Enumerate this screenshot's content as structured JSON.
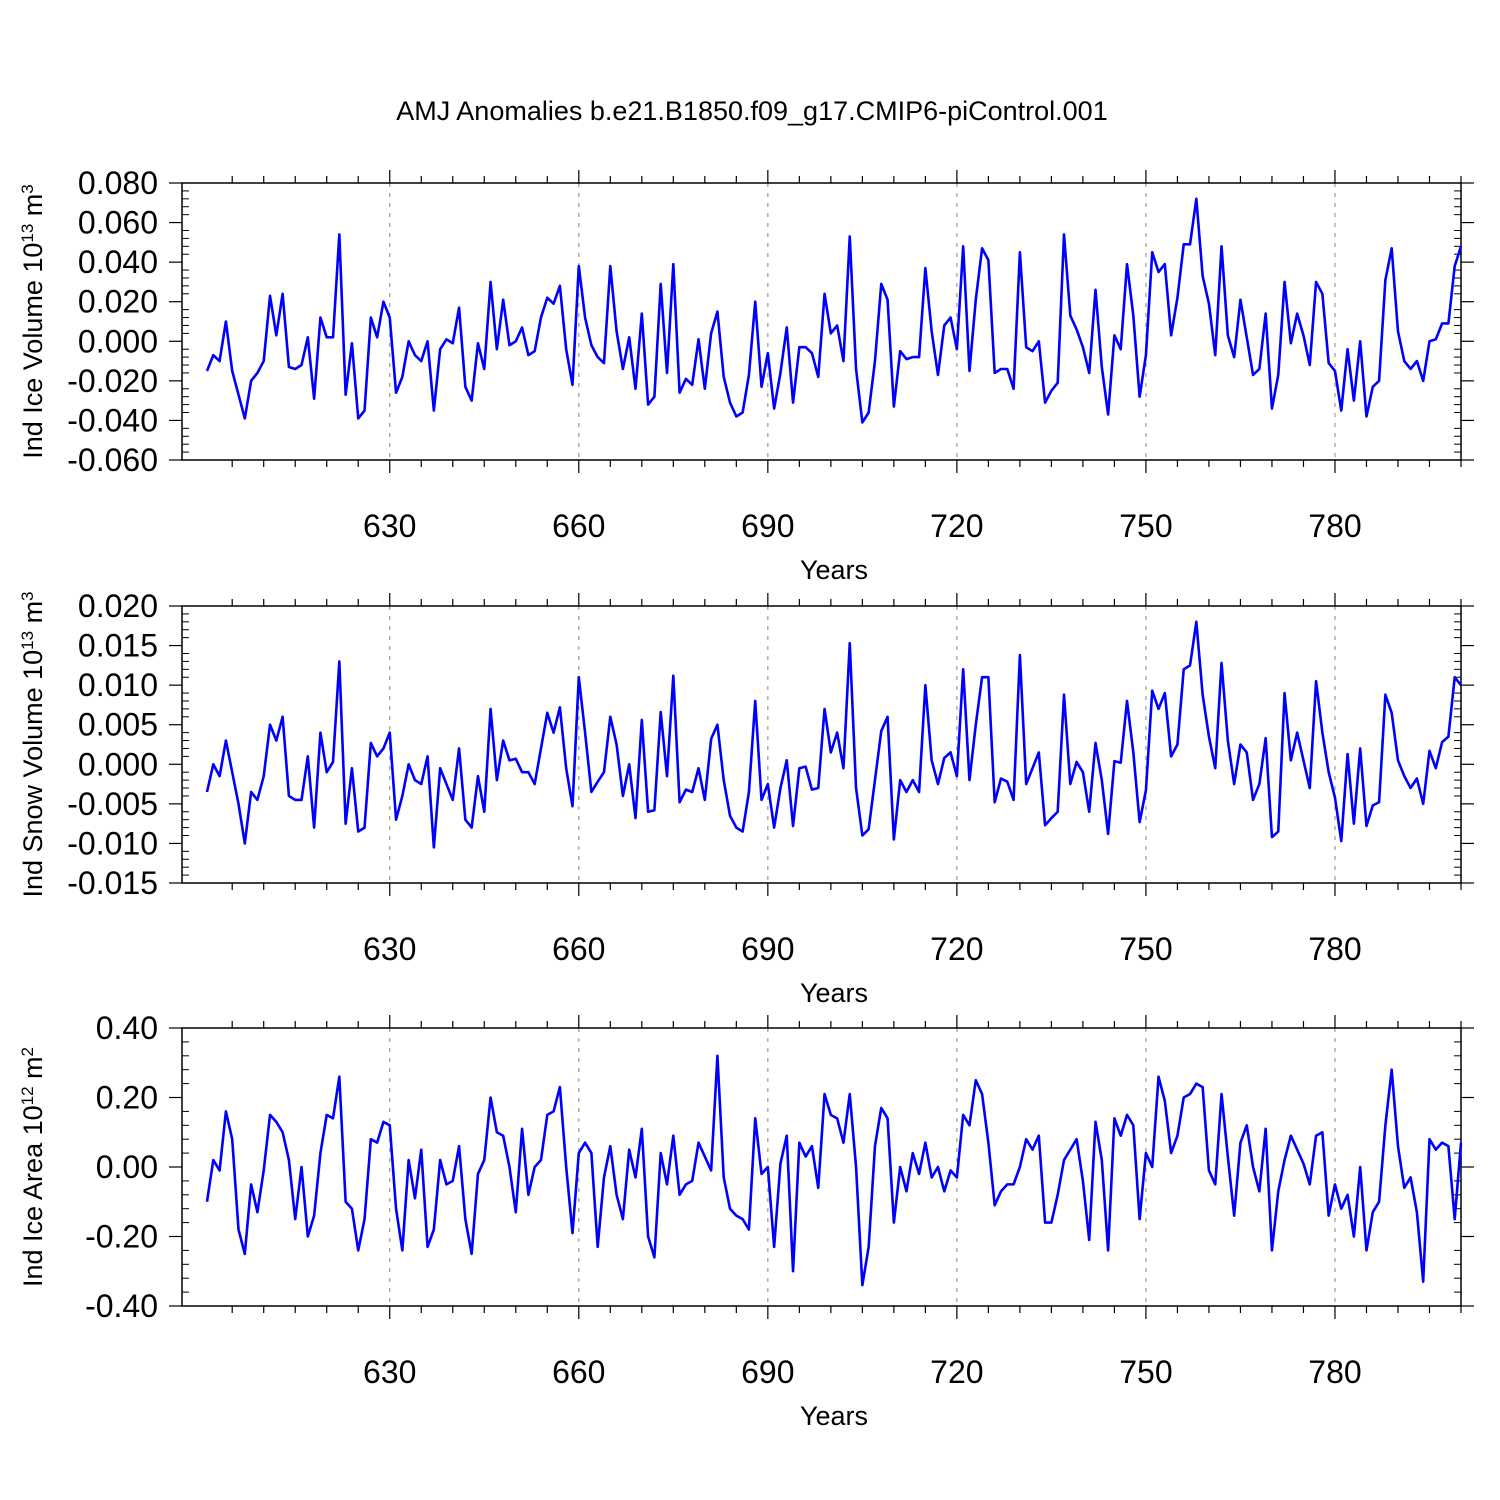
{
  "figure_title": "AMJ Anomalies b.e21.B1850.f09_g17.CMIP6-piControl.001",
  "colors": {
    "series": "#0000ff",
    "grid": "#999999",
    "axis": "#000000"
  },
  "chart_data": [
    {
      "type": "line",
      "ylabel_main": "Ind Ice Volume 10",
      "ylabel_exp": "13",
      "ylabel_unit": " m",
      "ylabel_unit_exp": "3",
      "xlabel": "Years",
      "xlim": [
        601,
        800
      ],
      "ylim": [
        -0.06,
        0.08
      ],
      "xticks": [
        630,
        660,
        690,
        720,
        750,
        780
      ],
      "xtick_labels": [
        "630",
        "660",
        "690",
        "720",
        "750",
        "780"
      ],
      "yticks": [
        -0.06,
        -0.04,
        -0.02,
        0.0,
        0.02,
        0.04,
        0.06,
        0.08
      ],
      "ytick_labels": [
        "-0.060",
        "-0.040",
        "-0.020",
        "0.000",
        "0.020",
        "0.040",
        "0.060",
        "0.080"
      ],
      "x_start": 601,
      "values": [
        -0.015,
        -0.007,
        -0.01,
        0.01,
        -0.015,
        -0.027,
        -0.039,
        -0.02,
        -0.016,
        -0.01,
        0.023,
        0.003,
        0.024,
        -0.013,
        -0.014,
        -0.012,
        0.002,
        -0.029,
        0.012,
        0.002,
        0.002,
        0.054,
        -0.027,
        -0.001,
        -0.039,
        -0.035,
        0.012,
        0.002,
        0.02,
        0.012,
        -0.026,
        -0.018,
        0.0,
        -0.007,
        -0.01,
        0.0,
        -0.035,
        -0.004,
        0.001,
        -0.001,
        0.017,
        -0.023,
        -0.03,
        -0.001,
        -0.014,
        0.03,
        -0.004,
        0.021,
        -0.002,
        0.0,
        0.007,
        -0.007,
        -0.005,
        0.012,
        0.022,
        0.019,
        0.028,
        -0.004,
        -0.022,
        0.038,
        0.012,
        -0.002,
        -0.008,
        -0.011,
        0.038,
        0.005,
        -0.014,
        0.002,
        -0.024,
        0.014,
        -0.032,
        -0.028,
        0.029,
        -0.016,
        0.039,
        -0.026,
        -0.019,
        -0.022,
        0.001,
        -0.024,
        0.004,
        0.015,
        -0.018,
        -0.031,
        -0.038,
        -0.036,
        -0.017,
        0.02,
        -0.023,
        -0.006,
        -0.034,
        -0.016,
        0.007,
        -0.031,
        -0.003,
        -0.003,
        -0.006,
        -0.018,
        0.024,
        0.004,
        0.008,
        -0.01,
        0.053,
        -0.014,
        -0.041,
        -0.036,
        -0.01,
        0.029,
        0.021,
        -0.033,
        -0.005,
        -0.009,
        -0.008,
        -0.008,
        0.037,
        0.005,
        -0.017,
        0.008,
        0.012,
        -0.004,
        0.048,
        -0.015,
        0.021,
        0.047,
        0.041,
        -0.016,
        -0.014,
        -0.014,
        -0.024,
        0.045,
        -0.003,
        -0.005,
        0.0,
        -0.031,
        -0.025,
        -0.021,
        0.054,
        0.013,
        0.006,
        -0.003,
        -0.016,
        0.026,
        -0.013,
        -0.037,
        0.003,
        -0.004,
        0.039,
        0.013,
        -0.028,
        -0.007,
        0.045,
        0.035,
        0.039,
        0.003,
        0.022,
        0.049,
        0.049,
        0.072,
        0.033,
        0.019,
        -0.007,
        0.048,
        0.003,
        -0.008,
        0.021,
        0.002,
        -0.017,
        -0.014,
        0.014,
        -0.034,
        -0.017,
        0.03,
        -0.001,
        0.014,
        0.003,
        -0.012,
        0.03,
        0.024,
        -0.011,
        -0.015,
        -0.035,
        -0.004,
        -0.03,
        0.0,
        -0.038,
        -0.023,
        -0.02,
        0.031,
        0.047,
        0.005,
        -0.01,
        -0.014,
        -0.01,
        -0.02,
        0.0,
        0.001,
        0.009,
        0.009,
        0.038,
        0.048
      ]
    },
    {
      "type": "line",
      "ylabel_main": "Ind Snow Volume 10",
      "ylabel_exp": "13",
      "ylabel_unit": " m",
      "ylabel_unit_exp": "3",
      "xlabel": "Years",
      "xlim": [
        601,
        800
      ],
      "ylim": [
        -0.015,
        0.02
      ],
      "xticks": [
        630,
        660,
        690,
        720,
        750,
        780
      ],
      "xtick_labels": [
        "630",
        "660",
        "690",
        "720",
        "750",
        "780"
      ],
      "yticks": [
        -0.015,
        -0.01,
        -0.005,
        0.0,
        0.005,
        0.01,
        0.015,
        0.02
      ],
      "ytick_labels": [
        "-0.015",
        "-0.010",
        "-0.005",
        "0.000",
        "0.005",
        "0.010",
        "0.015",
        "0.020"
      ],
      "x_start": 601,
      "values": [
        -0.0035,
        0.0,
        -0.0015,
        0.003,
        -0.001,
        -0.005,
        -0.01,
        -0.0035,
        -0.0045,
        -0.0015,
        0.005,
        0.003,
        0.006,
        -0.004,
        -0.0045,
        -0.0045,
        0.001,
        -0.008,
        0.004,
        -0.001,
        0.0003,
        0.013,
        -0.0075,
        -0.0005,
        -0.0085,
        -0.008,
        0.0027,
        0.001,
        0.002,
        0.004,
        -0.007,
        -0.004,
        0.0,
        -0.002,
        -0.0025,
        0.001,
        -0.0105,
        -0.0005,
        -0.0025,
        -0.0045,
        0.002,
        -0.007,
        -0.008,
        -0.0015,
        -0.006,
        0.007,
        -0.002,
        0.003,
        0.0005,
        0.0007,
        -0.001,
        -0.001,
        -0.0025,
        0.002,
        0.0065,
        0.004,
        0.0072,
        -0.0005,
        -0.0053,
        0.011,
        0.004,
        -0.0035,
        -0.0022,
        -0.001,
        0.006,
        0.0025,
        -0.004,
        0.0,
        -0.0068,
        0.0056,
        -0.006,
        -0.0058,
        0.0066,
        -0.0015,
        0.0112,
        -0.0048,
        -0.0032,
        -0.0035,
        -0.0005,
        -0.0045,
        0.0032,
        0.005,
        -0.002,
        -0.0065,
        -0.008,
        -0.0085,
        -0.0035,
        0.008,
        -0.0045,
        -0.0025,
        -0.008,
        -0.003,
        0.0005,
        -0.0078,
        -0.0005,
        -0.0003,
        -0.0032,
        -0.003,
        0.007,
        0.0015,
        0.004,
        -0.0005,
        0.0153,
        -0.003,
        -0.009,
        -0.0082,
        -0.002,
        0.0042,
        0.006,
        -0.0095,
        -0.002,
        -0.0035,
        -0.002,
        -0.0035,
        0.01,
        0.0005,
        -0.0025,
        0.0008,
        0.0015,
        -0.0015,
        0.012,
        -0.002,
        0.005,
        0.011,
        0.011,
        -0.0048,
        -0.0018,
        -0.0022,
        -0.0045,
        0.0138,
        -0.0025,
        -0.0005,
        0.0015,
        -0.0077,
        -0.0068,
        -0.006,
        0.0088,
        -0.0025,
        0.0003,
        -0.001,
        -0.006,
        0.0027,
        -0.002,
        -0.0088,
        0.0004,
        0.0002,
        0.008,
        0.0015,
        -0.0073,
        -0.0033,
        0.0093,
        0.007,
        0.009,
        0.001,
        0.0025,
        0.012,
        0.0125,
        0.018,
        0.0088,
        0.0035,
        -0.0005,
        0.0128,
        0.003,
        -0.0025,
        0.0025,
        0.0015,
        -0.0045,
        -0.0025,
        0.0033,
        -0.0092,
        -0.0085,
        0.009,
        0.0005,
        0.004,
        0.0005,
        -0.003,
        0.0105,
        0.004,
        -0.001,
        -0.0042,
        -0.0097,
        0.0013,
        -0.0075,
        0.002,
        -0.0078,
        -0.0052,
        -0.0048,
        0.0088,
        0.0065,
        0.0005,
        -0.0015,
        -0.003,
        -0.0018,
        -0.005,
        0.0017,
        -0.0005,
        0.0028,
        0.0035,
        0.011,
        0.01
      ]
    },
    {
      "type": "line",
      "ylabel_main": "Ind Ice Area 10",
      "ylabel_exp": "12",
      "ylabel_unit": " m",
      "ylabel_unit_exp": "2",
      "xlabel": "Years",
      "xlim": [
        601,
        800
      ],
      "ylim": [
        -0.4,
        0.4
      ],
      "xticks": [
        630,
        660,
        690,
        720,
        750,
        780
      ],
      "xtick_labels": [
        "630",
        "660",
        "690",
        "720",
        "750",
        "780"
      ],
      "yticks": [
        -0.4,
        -0.2,
        0.0,
        0.2,
        0.4
      ],
      "ytick_labels": [
        "-0.40",
        "-0.20",
        "0.00",
        "0.20",
        "0.40"
      ],
      "x_start": 601,
      "values": [
        -0.1,
        0.02,
        -0.01,
        0.16,
        0.08,
        -0.18,
        -0.25,
        -0.05,
        -0.13,
        -0.01,
        0.15,
        0.13,
        0.1,
        0.02,
        -0.15,
        0.0,
        -0.2,
        -0.14,
        0.04,
        0.15,
        0.14,
        0.26,
        -0.1,
        -0.12,
        -0.24,
        -0.15,
        0.08,
        0.07,
        0.13,
        0.12,
        -0.12,
        -0.24,
        0.02,
        -0.09,
        0.05,
        -0.23,
        -0.18,
        0.02,
        -0.05,
        -0.04,
        0.06,
        -0.15,
        -0.25,
        -0.02,
        0.02,
        0.2,
        0.1,
        0.09,
        0.0,
        -0.13,
        0.11,
        -0.08,
        0.0,
        0.02,
        0.15,
        0.16,
        0.23,
        0.0,
        -0.19,
        0.04,
        0.07,
        0.04,
        -0.23,
        -0.03,
        0.06,
        -0.08,
        -0.15,
        0.05,
        -0.03,
        0.11,
        -0.2,
        -0.26,
        0.04,
        -0.05,
        0.09,
        -0.08,
        -0.05,
        -0.04,
        0.07,
        0.03,
        -0.01,
        0.32,
        -0.03,
        -0.12,
        -0.14,
        -0.15,
        -0.18,
        0.14,
        -0.02,
        0.0,
        -0.23,
        0.01,
        0.09,
        -0.3,
        0.07,
        0.03,
        0.06,
        -0.06,
        0.21,
        0.15,
        0.14,
        0.07,
        0.21,
        0.0,
        -0.34,
        -0.23,
        0.06,
        0.17,
        0.14,
        -0.16,
        0.0,
        -0.07,
        0.04,
        -0.02,
        0.07,
        -0.03,
        0.0,
        -0.07,
        -0.01,
        -0.03,
        0.15,
        0.12,
        0.25,
        0.21,
        0.07,
        -0.11,
        -0.07,
        -0.05,
        -0.05,
        0.0,
        0.08,
        0.05,
        0.09,
        -0.16,
        -0.16,
        -0.08,
        0.02,
        0.05,
        0.08,
        -0.04,
        -0.21,
        0.13,
        0.02,
        -0.24,
        0.14,
        0.09,
        0.15,
        0.12,
        -0.15,
        0.04,
        0.0,
        0.26,
        0.19,
        0.04,
        0.09,
        0.2,
        0.21,
        0.24,
        0.23,
        -0.01,
        -0.05,
        0.21,
        0.03,
        -0.14,
        0.07,
        0.12,
        0.0,
        -0.07,
        0.11,
        -0.24,
        -0.07,
        0.02,
        0.09,
        0.05,
        0.01,
        -0.05,
        0.09,
        0.1,
        -0.14,
        -0.05,
        -0.12,
        -0.08,
        -0.2,
        0.0,
        -0.24,
        -0.13,
        -0.1,
        0.12,
        0.28,
        0.06,
        -0.06,
        -0.03,
        -0.13,
        -0.33,
        0.08,
        0.05,
        0.07,
        0.06,
        -0.15,
        0.07
      ]
    }
  ]
}
